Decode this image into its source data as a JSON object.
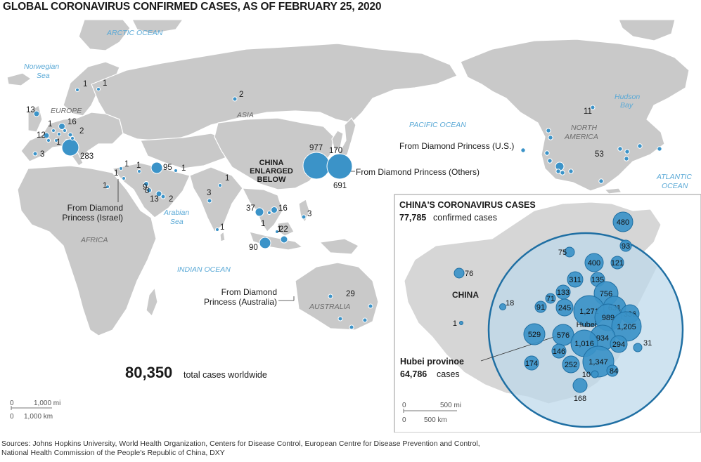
{
  "title": "GLOBAL CORONAVIRUS CONFIRMED CASES, AS OF FEBRUARY 25, 2020",
  "sources_line1": "Sources: Johns Hopkins University, World Health Organization, Centers for Disease Control, European Centre for Disease Prevention and Control,",
  "sources_line2": "National Health Commission of the People's Republic of China, DXY",
  "colors": {
    "bubble": "#3b93c8",
    "land": "#c9c9c9",
    "china_land": "#cfcfcf",
    "ocean_label": "#5aa9d6",
    "china_highlight": "#bcd8ea",
    "outline": "#1f6fa3"
  },
  "oceans": {
    "arctic": "ARCTIC OCEAN",
    "norwegian": "Norwegian",
    "norwegian2": "Sea",
    "pacific": "PACIFIC OCEAN",
    "hudson": "Hudson",
    "hudson2": "Bay",
    "atlantic": "ATLANTIC",
    "atlantic2": "OCEAN",
    "arabian": "Arabian",
    "arabian2": "Sea",
    "indian": "INDIAN OCEAN"
  },
  "regions": {
    "europe": "EUROPE",
    "asia": "ASIA",
    "africa": "AFRICA",
    "north_america": "NORTH",
    "north_america2": "AMERICA",
    "australia": "AUSTRALIA"
  },
  "china_label": {
    "l1": "CHINA",
    "l2": "ENLARGED",
    "l3": "BELOW"
  },
  "callouts": {
    "dp_us": "From Diamond Princess (U.S.)",
    "dp_others": "From Diamond Princess (Others)",
    "dp_israel1": "From Diamond",
    "dp_israel2": "Princess (Israel)",
    "dp_australia1": "From Diamond",
    "dp_australia2": "Princess (Australia)"
  },
  "total": {
    "value": "80,350",
    "label": "total cases worldwide"
  },
  "world_cases": [
    {
      "label": "1",
      "r": 2.5
    },
    {
      "label": "1",
      "r": 2.5
    },
    {
      "label": "13",
      "r": 4
    },
    {
      "label": "16",
      "r": 4.5
    },
    {
      "label": "1",
      "r": 2.5
    },
    {
      "label": "2",
      "r": 3
    },
    {
      "label": "12",
      "r": 4
    },
    {
      "label": "1",
      "r": 2.5
    },
    {
      "label": "1",
      "r": 2.5
    },
    {
      "label": "283",
      "r": 12
    },
    {
      "label": "3",
      "r": 3
    },
    {
      "label": "2",
      "r": 3
    },
    {
      "label": "95",
      "r": 8
    },
    {
      "label": "1",
      "r": 2.5
    },
    {
      "label": "1",
      "r": 2.5
    },
    {
      "label": "1",
      "r": 2.5
    },
    {
      "label": "1",
      "r": 2.5
    },
    {
      "label": "9",
      "r": 3.5
    },
    {
      "label": "8",
      "r": 3.5
    },
    {
      "label": "13",
      "r": 4
    },
    {
      "label": "2",
      "r": 3
    },
    {
      "label": "1",
      "r": 2.5
    },
    {
      "label": "1",
      "r": 2.5
    },
    {
      "label": "3",
      "r": 3
    },
    {
      "label": "1",
      "r": 2.5
    },
    {
      "label": "1",
      "r": 2.5
    },
    {
      "label": "977",
      "r": 19
    },
    {
      "label": "170",
      "r": 10
    },
    {
      "label": "691",
      "r": 18
    },
    {
      "label": "37",
      "r": 6
    },
    {
      "label": "16",
      "r": 4.5
    },
    {
      "label": "1",
      "r": 2.5
    },
    {
      "label": "3",
      "r": 3
    },
    {
      "label": "22",
      "r": 5
    },
    {
      "label": "90",
      "r": 8
    },
    {
      "label": "29",
      "r": 3
    },
    {
      "label": "11",
      "r": 3
    },
    {
      "label": "53",
      "r": 6
    }
  ],
  "china_inset": {
    "title": "CHINA'S CORONAVIRUS CASES",
    "confirmed_value": "77,785",
    "confirmed_label": "confirmed cases",
    "country": "CHINA",
    "hubei_label": "Hubei provinoe",
    "hubei_value": "64,786",
    "hubei_unit": "cases",
    "hubei_map_label": "Hubei",
    "provinces": [
      {
        "label": "480",
        "r": 14
      },
      {
        "label": "93",
        "r": 8
      },
      {
        "label": "121",
        "r": 9
      },
      {
        "label": "76",
        "r": 7
      },
      {
        "label": "75",
        "r": 7
      },
      {
        "label": "400",
        "r": 13
      },
      {
        "label": "311",
        "r": 11
      },
      {
        "label": "135",
        "r": 10
      },
      {
        "label": "133",
        "r": 10
      },
      {
        "label": "756",
        "r": 17
      },
      {
        "label": "71",
        "r": 7
      },
      {
        "label": "91",
        "r": 8
      },
      {
        "label": "245",
        "r": 12
      },
      {
        "label": "1,271",
        "r": 22
      },
      {
        "label": "631",
        "r": 16
      },
      {
        "label": "336",
        "r": 13
      },
      {
        "label": "989",
        "r": 19
      },
      {
        "label": "18",
        "r": 4.5
      },
      {
        "label": "1",
        "r": 2.5
      },
      {
        "label": "529",
        "r": 15
      },
      {
        "label": "576",
        "r": 15
      },
      {
        "label": "1,205",
        "r": 21
      },
      {
        "label": "934",
        "r": 18
      },
      {
        "label": "1,016",
        "r": 19
      },
      {
        "label": "294",
        "r": 12
      },
      {
        "label": "146",
        "r": 10
      },
      {
        "label": "31",
        "r": 6
      },
      {
        "label": "174",
        "r": 10
      },
      {
        "label": "252",
        "r": 12
      },
      {
        "label": "1,347",
        "r": 22
      },
      {
        "label": "84",
        "r": 8
      },
      {
        "label": "10",
        "r": 5
      },
      {
        "label": "168",
        "r": 10
      }
    ]
  },
  "scales": {
    "world": {
      "mi_zero": "0",
      "mi_label": "1,000 mi",
      "km_zero": "0",
      "km_label": "1,000 km"
    },
    "china": {
      "mi_zero": "0",
      "mi_label": "500 mi",
      "km_zero": "0",
      "km_label": "500 km"
    }
  }
}
